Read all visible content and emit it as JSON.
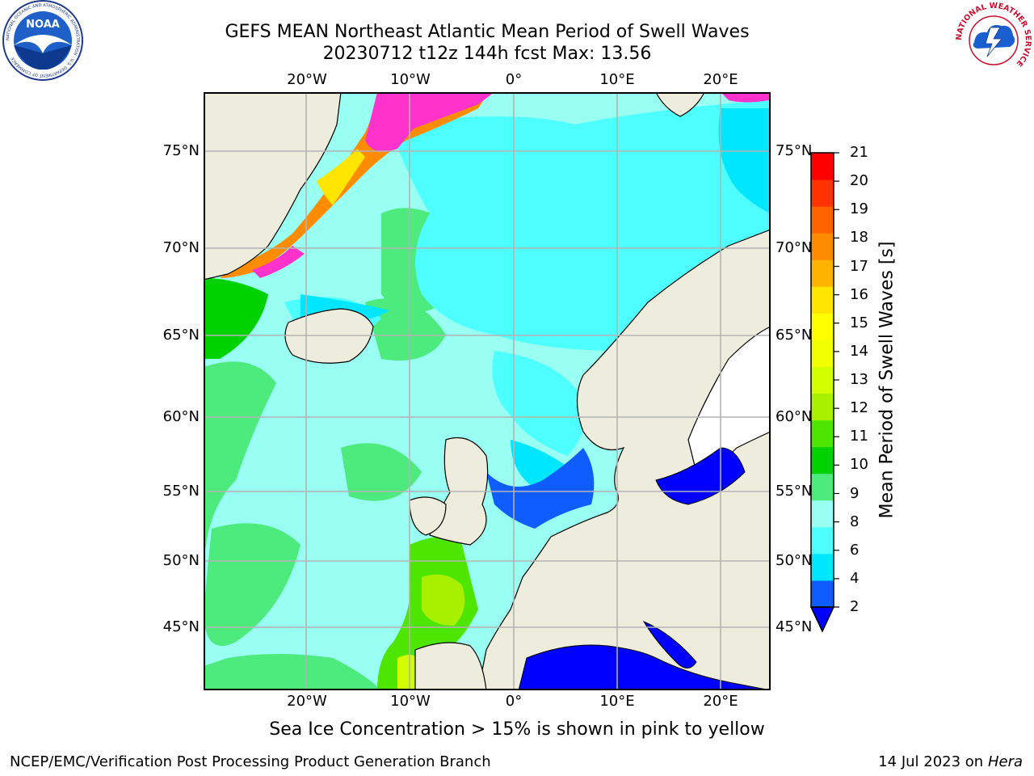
{
  "title": {
    "line1": "GEFS MEAN Northeast Atlantic Mean Period of Swell Waves",
    "line2": "20230712 t12z 144h fcst   Max: 13.56"
  },
  "map": {
    "lon_labels": [
      "20°W",
      "10°W",
      "0°",
      "10°E",
      "20°E"
    ],
    "lat_labels": [
      "75°N",
      "70°N",
      "65°N",
      "60°N",
      "55°N",
      "50°N",
      "45°N"
    ],
    "colors": {
      "land": "#eeecdc",
      "coast": "#000000",
      "grid": "#b3b3b3"
    }
  },
  "colorbar": {
    "label": "Mean Period of Swell Waves [s]",
    "tick_labels": [
      "2",
      "4",
      "6",
      "8",
      "9",
      "10",
      "11",
      "12",
      "13",
      "14",
      "15",
      "16",
      "17",
      "18",
      "19",
      "20",
      "21"
    ],
    "colors": [
      "#0f5cff",
      "#00e6ff",
      "#4dffff",
      "#99fff2",
      "#4dea7d",
      "#00d200",
      "#4ee600",
      "#a6f000",
      "#d2ff00",
      "#f2ff00",
      "#ffff00",
      "#ffe500",
      "#ffb300",
      "#ff8c00",
      "#ff6400",
      "#ff3200",
      "#ff0000"
    ],
    "under_color": "#0000ff"
  },
  "logos": {
    "noaa": {
      "text": "NOAA",
      "ring_text": "NATIONAL OCEANIC AND ATMOSPHERIC ADMINISTRATION · U.S. DEPARTMENT OF COMMERCE"
    },
    "nws": {
      "ring_text": "NATIONAL WEATHER SERVICE"
    }
  },
  "ice_note": "Sea Ice Concentration > 15% is shown in pink to yellow",
  "footer": {
    "left": "NCEP/EMC/Verification Post Processing Product Generation Branch",
    "date": "14 Jul 2023 on ",
    "host": "Hera"
  }
}
